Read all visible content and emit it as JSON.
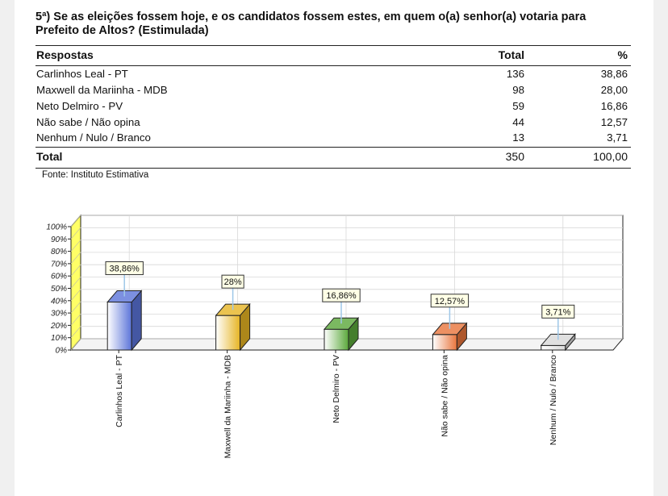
{
  "question": {
    "line1": "5ª) Se as eleições fossem hoje, e os candidatos fossem estes, em quem o(a) senhor(a) votaria para",
    "line2": "Prefeito de Altos? (Estimulada)"
  },
  "table": {
    "headers": {
      "label": "Respostas",
      "total": "Total",
      "pct": "%"
    },
    "rows": [
      {
        "label": "Carlinhos Leal - PT",
        "total": "136",
        "pct": "38,86"
      },
      {
        "label": "Maxwell da Mariinha - MDB",
        "total": "98",
        "pct": "28,00"
      },
      {
        "label": "Neto Delmiro - PV",
        "total": "59",
        "pct": "16,86"
      },
      {
        "label": "Não sabe / Não opina",
        "total": "44",
        "pct": "12,57"
      },
      {
        "label": "Nenhum / Nulo / Branco",
        "total": "13",
        "pct": "3,71"
      }
    ],
    "total_row": {
      "label": "Total",
      "total": "350",
      "pct": "100,00"
    }
  },
  "source": "Fonte: Instituto Estimativa",
  "chart_data": {
    "type": "bar",
    "categories": [
      "Carlinhos Leal - PT",
      "Maxwell da Mariinha - MDB",
      "Neto Delmiro - PV",
      "Não sabe / Não opina",
      "Nenhum / Nulo / Branco"
    ],
    "values": [
      38.86,
      28,
      16.86,
      12.57,
      3.71
    ],
    "data_labels": [
      "38,86%",
      "28%",
      "16,86%",
      "12,57%",
      "3,71%"
    ],
    "y_ticks": [
      "0%",
      "10%",
      "20%",
      "30%",
      "40%",
      "50%",
      "60%",
      "70%",
      "80%",
      "90%",
      "100%"
    ],
    "ylim": [
      0,
      100
    ],
    "grid": true,
    "colors": [
      "#5b74d9",
      "#e6b423",
      "#5aa83a",
      "#e8743b",
      "#d8d8d8"
    ],
    "wall_color": "#ffff66"
  }
}
